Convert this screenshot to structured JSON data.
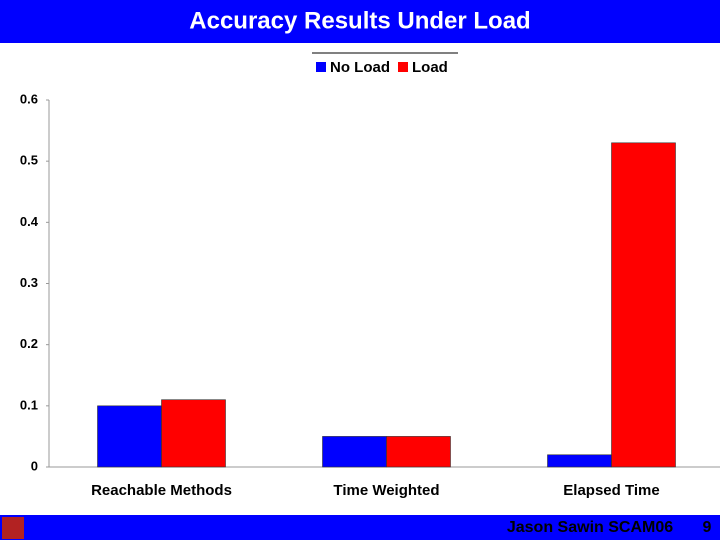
{
  "chart_data": {
    "type": "bar",
    "title": "Accuracy Results Under Load",
    "categories": [
      "Reachable Methods",
      "Time Weighted",
      "Elapsed Time"
    ],
    "series": [
      {
        "name": "No Load",
        "color": "#0000ff",
        "values": [
          0.1,
          0.05,
          0.02
        ]
      },
      {
        "name": "Load",
        "color": "#ff0000",
        "values": [
          0.11,
          0.05,
          0.53
        ]
      }
    ],
    "ylim": [
      0,
      0.6
    ],
    "yticks": [
      0,
      0.1,
      0.2,
      0.3,
      0.4,
      0.5,
      0.6
    ],
    "legend": "top"
  },
  "footer": {
    "author": "Jason Sawin SCAM06",
    "page": "9"
  }
}
